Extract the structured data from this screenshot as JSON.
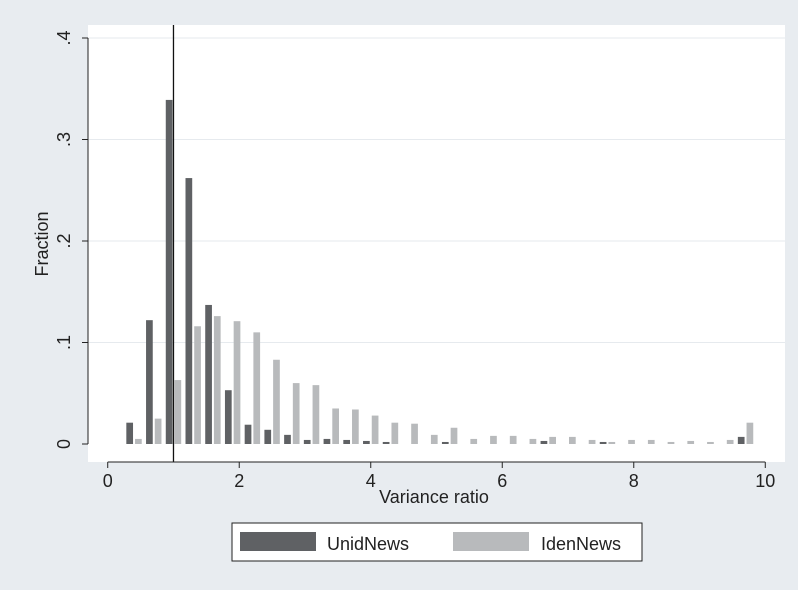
{
  "chart_data": {
    "type": "bar",
    "xlabel": "Variance ratio",
    "ylabel": "Fraction",
    "xlim": [
      -0.3,
      10.3
    ],
    "ylim": [
      0,
      0.4
    ],
    "x_ticks": [
      0,
      2,
      4,
      6,
      8,
      10
    ],
    "x_tick_labels": [
      "0",
      "2",
      "4",
      "6",
      "8",
      "10"
    ],
    "y_ticks": [
      0,
      0.1,
      0.2,
      0.3,
      0.4
    ],
    "y_tick_labels": [
      "0",
      ".1",
      ".2",
      ".3",
      ".4"
    ],
    "grid": true,
    "legend_position": "bottom",
    "reference_line_x": 1,
    "bin_width": 0.3,
    "x": [
      0.4,
      0.7,
      1.0,
      1.3,
      1.6,
      1.9,
      2.2,
      2.5,
      2.8,
      3.1,
      3.4,
      3.7,
      4.0,
      4.3,
      4.6,
      4.9,
      5.2,
      5.5,
      5.8,
      6.1,
      6.4,
      6.7,
      7.0,
      7.3,
      7.6,
      7.9,
      8.2,
      8.5,
      8.8,
      9.1,
      9.4,
      9.7
    ],
    "series": [
      {
        "name": "UnidNews",
        "color": "#5f6164",
        "values": [
          0.021,
          0.122,
          0.339,
          0.262,
          0.137,
          0.053,
          0.019,
          0.014,
          0.009,
          0.004,
          0.005,
          0.004,
          0.003,
          0.002,
          0.0,
          0.0,
          0.002,
          0.0,
          0.0,
          0.0,
          0.0,
          0.003,
          0.0,
          0.0,
          0.002,
          0.0,
          0.0,
          0.0,
          0.0,
          0.0,
          0.0,
          0.007
        ]
      },
      {
        "name": "IdenNews",
        "color": "#b8babc",
        "values": [
          0.005,
          0.025,
          0.063,
          0.116,
          0.126,
          0.121,
          0.11,
          0.083,
          0.06,
          0.058,
          0.035,
          0.034,
          0.028,
          0.021,
          0.02,
          0.009,
          0.016,
          0.005,
          0.008,
          0.008,
          0.005,
          0.007,
          0.007,
          0.004,
          0.002,
          0.004,
          0.004,
          0.002,
          0.003,
          0.002,
          0.004,
          0.021
        ]
      }
    ]
  }
}
